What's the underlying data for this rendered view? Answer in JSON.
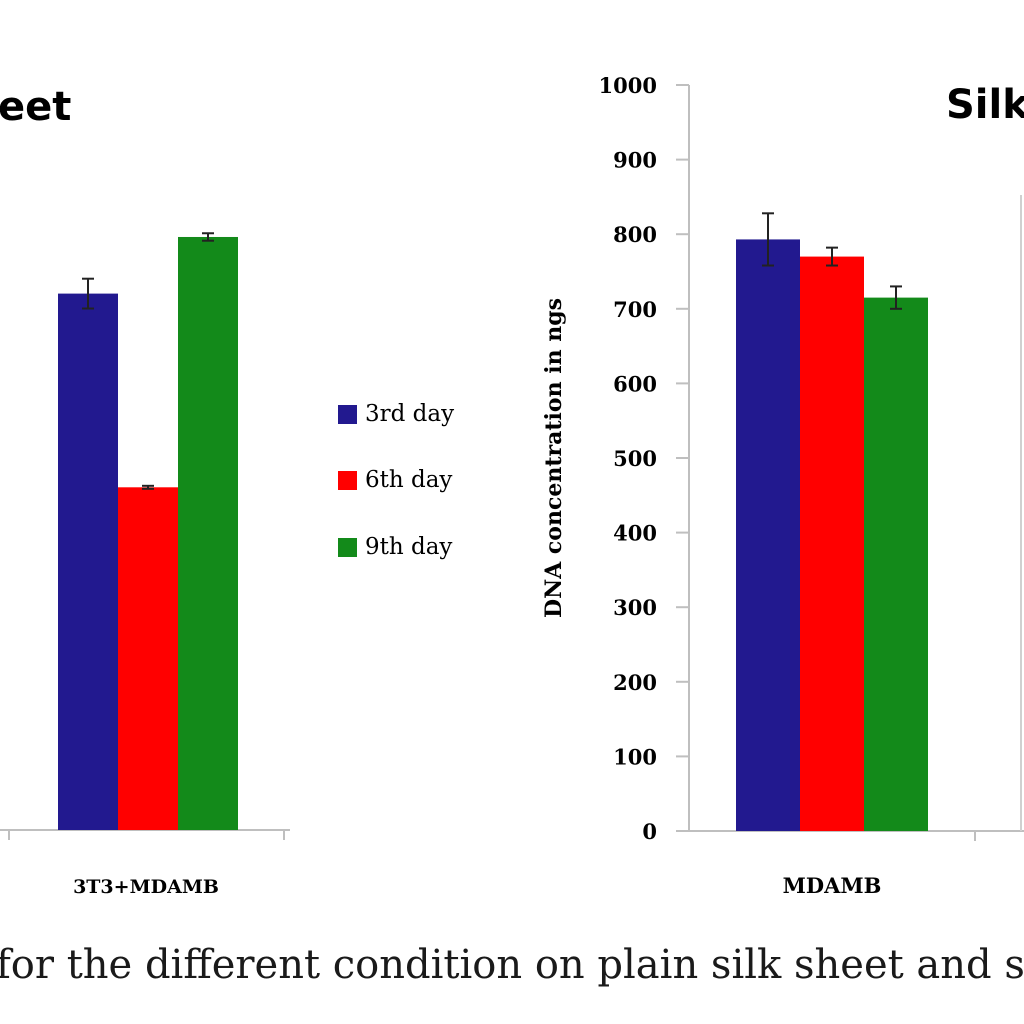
{
  "caption": "for the different condition on plain silk sheet and si",
  "legend": [
    {
      "label": "3rd day",
      "color": "#22198f"
    },
    {
      "label": "6th day",
      "color": "#ff0000"
    },
    {
      "label": "9th day",
      "color": "#138a1a"
    }
  ],
  "chart_data": [
    {
      "type": "bar",
      "title": "eet",
      "categories": [
        "3T3+MDAMB"
      ],
      "series": [
        {
          "name": "3rd day",
          "values": [
            720
          ],
          "error": [
            20
          ]
        },
        {
          "name": "6th day",
          "values": [
            460
          ],
          "error": [
            2
          ]
        },
        {
          "name": "9th day",
          "values": [
            796
          ],
          "error": [
            5
          ]
        }
      ],
      "ylim": [
        0,
        1000
      ],
      "y_ticks_visible": false
    },
    {
      "type": "bar",
      "title": "Silk",
      "ylabel": "DNA concentration in ngs",
      "categories": [
        "MDAMB"
      ],
      "series": [
        {
          "name": "3rd day",
          "values": [
            793
          ],
          "error": [
            35
          ]
        },
        {
          "name": "6th day",
          "values": [
            770
          ],
          "error": [
            12
          ]
        },
        {
          "name": "9th day",
          "values": [
            715
          ],
          "error": [
            15
          ]
        }
      ],
      "ylim": [
        0,
        1000
      ],
      "yticks": [
        0,
        100,
        200,
        300,
        400,
        500,
        600,
        700,
        800,
        900,
        1000
      ]
    }
  ]
}
